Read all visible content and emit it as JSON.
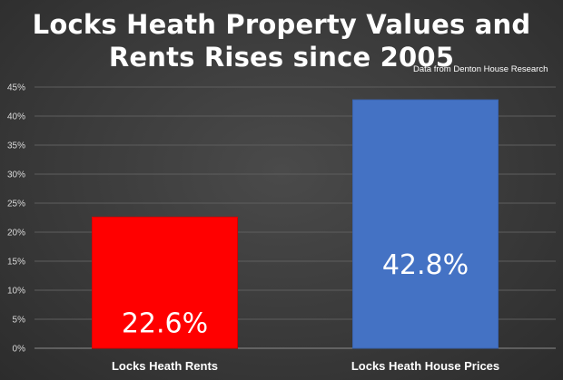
{
  "chart_data": {
    "type": "bar",
    "title_lines": [
      "Locks Heath Property Values and",
      "Rents Rises since 2005"
    ],
    "source_note": "Data from Denton House Research",
    "categories": [
      "Locks Heath Rents",
      "Locks Heath House Prices"
    ],
    "values": [
      22.6,
      42.8
    ],
    "data_labels": [
      "22.6%",
      "42.8%"
    ],
    "bar_colors": [
      "#ff0000",
      "#4472c4"
    ],
    "ylim": [
      0,
      45
    ],
    "y_ticks": [
      "0%",
      "5%",
      "10%",
      "15%",
      "20%",
      "25%",
      "30%",
      "35%",
      "40%",
      "45%"
    ],
    "y_tick_values": [
      0,
      5,
      10,
      15,
      20,
      25,
      30,
      35,
      40,
      45
    ],
    "grid": true,
    "legend": "none"
  }
}
